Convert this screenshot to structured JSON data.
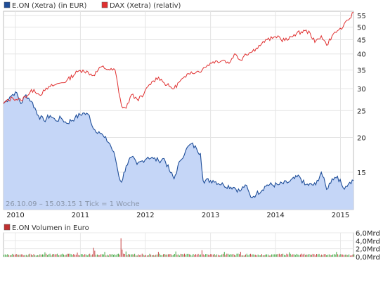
{
  "chart_data": [
    {
      "type": "area",
      "title": "",
      "legend": [
        {
          "label": "E.ON (Xetra) (in EUR)",
          "color": "#1f4e99"
        },
        {
          "label": "DAX (Xetra) (relativ)",
          "color": "#e03030"
        }
      ],
      "legend_placement": "top-left",
      "info_text": "26.10.09 – 15.03.15   1 Tick = 1 Woche",
      "x_ticks": [
        "2010",
        "2011",
        "2012",
        "2013",
        "2014",
        "2015"
      ],
      "y_ticks": [
        "55",
        "50",
        "45",
        "40",
        "35",
        "30",
        "25",
        "20",
        "15"
      ],
      "yscale": "log",
      "ylim": [
        11,
        57
      ],
      "xlim": [
        "2009-10-26",
        "2015-03-15"
      ],
      "grid": true,
      "series": [
        {
          "name": "E.ON (Xetra) (in EUR)",
          "color": "#1f4e99",
          "fill": "#c5d6f7",
          "points": [
            [
              "2009-10-26",
              26.5
            ],
            [
              "2009-12-01",
              28.0
            ],
            [
              "2010-01-01",
              29.2
            ],
            [
              "2010-02-01",
              26.5
            ],
            [
              "2010-03-01",
              28.5
            ],
            [
              "2010-04-01",
              27.0
            ],
            [
              "2010-05-10",
              24.0
            ],
            [
              "2010-06-10",
              23.0
            ],
            [
              "2010-07-15",
              24.0
            ],
            [
              "2010-08-15",
              23.0
            ],
            [
              "2010-09-15",
              23.5
            ],
            [
              "2010-10-15",
              22.5
            ],
            [
              "2010-12-01",
              23.5
            ],
            [
              "2011-01-15",
              24.5
            ],
            [
              "2011-02-20",
              24.0
            ],
            [
              "2011-03-15",
              21.5
            ],
            [
              "2011-04-15",
              21.0
            ],
            [
              "2011-05-15",
              20.0
            ],
            [
              "2011-06-15",
              19.0
            ],
            [
              "2011-07-15",
              17.0
            ],
            [
              "2011-08-05",
              14.5
            ],
            [
              "2011-08-20",
              13.8
            ],
            [
              "2011-09-15",
              15.8
            ],
            [
              "2011-10-15",
              17.0
            ],
            [
              "2011-11-15",
              16.0
            ],
            [
              "2011-12-15",
              16.5
            ],
            [
              "2012-01-15",
              17.0
            ],
            [
              "2012-02-15",
              16.8
            ],
            [
              "2012-03-15",
              16.5
            ],
            [
              "2012-04-15",
              16.8
            ],
            [
              "2012-05-15",
              15.2
            ],
            [
              "2012-06-10",
              14.2
            ],
            [
              "2012-07-15",
              16.5
            ],
            [
              "2012-08-15",
              18.0
            ],
            [
              "2012-09-15",
              19.0
            ],
            [
              "2012-10-15",
              18.2
            ],
            [
              "2012-11-05",
              17.5
            ],
            [
              "2012-11-20",
              14.0
            ],
            [
              "2013-01-15",
              14.0
            ],
            [
              "2013-03-15",
              13.5
            ],
            [
              "2013-05-15",
              13.2
            ],
            [
              "2013-06-15",
              12.8
            ],
            [
              "2013-07-15",
              13.5
            ],
            [
              "2013-08-15",
              12.2
            ],
            [
              "2013-09-15",
              12.5
            ],
            [
              "2013-11-15",
              13.5
            ],
            [
              "2014-01-15",
              13.5
            ],
            [
              "2014-03-15",
              13.8
            ],
            [
              "2014-05-15",
              14.5
            ],
            [
              "2014-06-15",
              13.5
            ],
            [
              "2014-08-15",
              13.5
            ],
            [
              "2014-09-15",
              15.0
            ],
            [
              "2014-10-15",
              13.0
            ],
            [
              "2014-11-15",
              14.2
            ],
            [
              "2014-12-15",
              14.5
            ],
            [
              "2015-01-15",
              13.2
            ],
            [
              "2015-02-15",
              13.6
            ],
            [
              "2015-03-15",
              14.0
            ]
          ]
        },
        {
          "name": "DAX (Xetra) (relativ)",
          "color": "#e03030",
          "points": [
            [
              "2009-10-26",
              26.5
            ],
            [
              "2009-12-15",
              27.8
            ],
            [
              "2010-02-01",
              27.2
            ],
            [
              "2010-04-15",
              29.8
            ],
            [
              "2010-05-15",
              28.5
            ],
            [
              "2010-06-15",
              29.5
            ],
            [
              "2010-07-15",
              30.5
            ],
            [
              "2010-08-15",
              31.0
            ],
            [
              "2010-09-15",
              31.5
            ],
            [
              "2010-10-15",
              32.0
            ],
            [
              "2010-12-15",
              34.5
            ],
            [
              "2011-01-15",
              35.0
            ],
            [
              "2011-03-15",
              33.5
            ],
            [
              "2011-05-01",
              36.0
            ],
            [
              "2011-06-15",
              35.0
            ],
            [
              "2011-07-15",
              35.0
            ],
            [
              "2011-08-05",
              29.0
            ],
            [
              "2011-08-20",
              26.0
            ],
            [
              "2011-09-15",
              25.5
            ],
            [
              "2011-10-15",
              28.5
            ],
            [
              "2011-11-15",
              27.5
            ],
            [
              "2011-12-15",
              28.0
            ],
            [
              "2012-01-15",
              30.5
            ],
            [
              "2012-02-15",
              32.0
            ],
            [
              "2012-03-15",
              33.0
            ],
            [
              "2012-04-15",
              31.5
            ],
            [
              "2012-05-15",
              30.5
            ],
            [
              "2012-06-10",
              30.0
            ],
            [
              "2012-07-15",
              32.0
            ],
            [
              "2012-08-15",
              33.0
            ],
            [
              "2012-09-15",
              34.5
            ],
            [
              "2012-10-15",
              34.5
            ],
            [
              "2012-11-15",
              35.0
            ],
            [
              "2012-12-15",
              36.5
            ],
            [
              "2013-01-15",
              37.5
            ],
            [
              "2013-03-15",
              38.0
            ],
            [
              "2013-04-15",
              37.0
            ],
            [
              "2013-05-15",
              40.0
            ],
            [
              "2013-06-20",
              38.0
            ],
            [
              "2013-07-15",
              40.0
            ],
            [
              "2013-08-15",
              40.5
            ],
            [
              "2013-09-15",
              42.0
            ],
            [
              "2013-10-15",
              43.5
            ],
            [
              "2013-11-15",
              45.0
            ],
            [
              "2013-12-15",
              45.5
            ],
            [
              "2014-01-15",
              46.5
            ],
            [
              "2014-02-01",
              45.0
            ],
            [
              "2014-03-15",
              45.0
            ],
            [
              "2014-04-15",
              47.0
            ],
            [
              "2014-06-15",
              48.5
            ],
            [
              "2014-07-15",
              47.5
            ],
            [
              "2014-08-10",
              44.0
            ],
            [
              "2014-09-15",
              46.5
            ],
            [
              "2014-10-15",
              43.0
            ],
            [
              "2014-11-15",
              46.5
            ],
            [
              "2014-12-15",
              48.5
            ],
            [
              "2015-01-15",
              50.0
            ],
            [
              "2015-02-15",
              53.0
            ],
            [
              "2015-03-15",
              56.5
            ]
          ]
        }
      ]
    },
    {
      "type": "bar",
      "title": "",
      "legend": [
        {
          "label": "E.ON Volumen in Euro",
          "color": "#c03030"
        }
      ],
      "legend_placement": "top-left",
      "y_ticks": [
        "6,0Mrd",
        "4,0Mrd",
        "2,0Mrd",
        "0,0Mrd"
      ],
      "ylim": [
        0,
        6
      ],
      "unit": "Mrd",
      "xlim": [
        "2009-10-26",
        "2015-03-15"
      ],
      "grid": true,
      "bar_colors": {
        "up": "#2ea02e",
        "down": "#c03030"
      },
      "base_volume_mrd": 0.55,
      "spikes": [
        {
          "date": "2010-06-15",
          "value": 1.1,
          "dir": "up"
        },
        {
          "date": "2010-12-15",
          "value": 1.0,
          "dir": "down"
        },
        {
          "date": "2011-03-15",
          "value": 2.2,
          "dir": "down"
        },
        {
          "date": "2011-03-22",
          "value": 1.5,
          "dir": "down"
        },
        {
          "date": "2011-05-15",
          "value": 1.2,
          "dir": "up"
        },
        {
          "date": "2011-08-12",
          "value": 4.6,
          "dir": "down"
        },
        {
          "date": "2011-08-19",
          "value": 1.8,
          "dir": "down"
        },
        {
          "date": "2011-09-15",
          "value": 1.3,
          "dir": "up"
        },
        {
          "date": "2012-03-15",
          "value": 1.2,
          "dir": "down"
        },
        {
          "date": "2012-06-15",
          "value": 1.3,
          "dir": "up"
        },
        {
          "date": "2012-11-15",
          "value": 1.6,
          "dir": "down"
        },
        {
          "date": "2013-03-15",
          "value": 1.2,
          "dir": "up"
        },
        {
          "date": "2013-06-15",
          "value": 1.2,
          "dir": "down"
        },
        {
          "date": "2014-03-15",
          "value": 1.1,
          "dir": "up"
        },
        {
          "date": "2014-12-05",
          "value": 1.2,
          "dir": "up"
        }
      ]
    }
  ]
}
